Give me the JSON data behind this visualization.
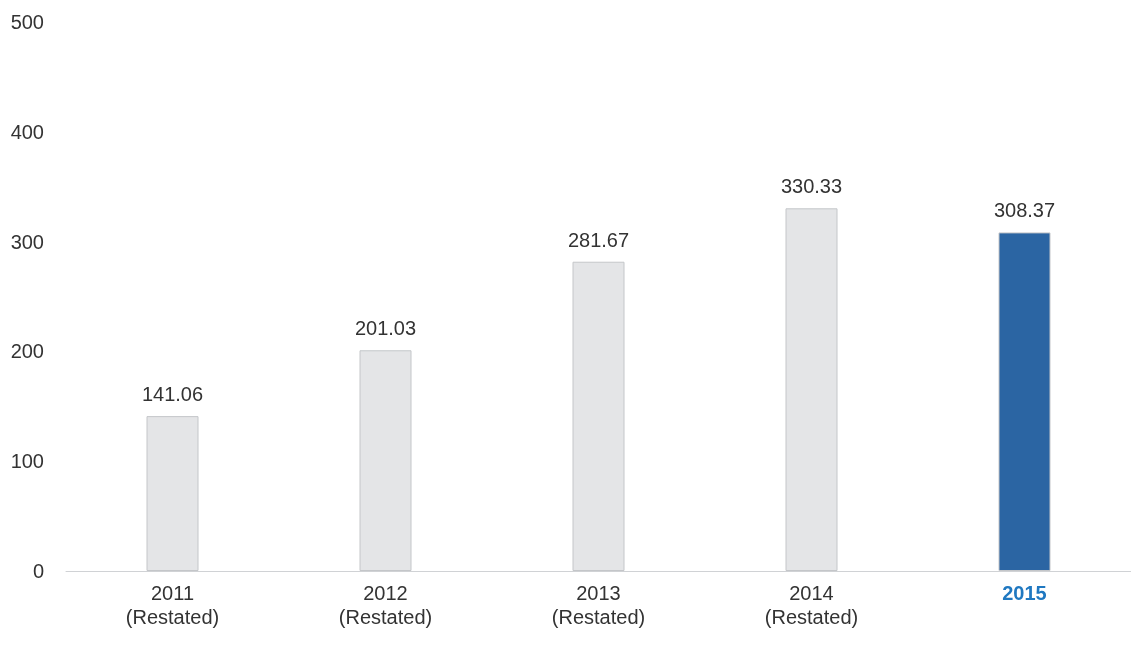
{
  "chart_data": {
    "type": "bar",
    "categories": [
      "2011\n(Restated)",
      "2012\n(Restated)",
      "2013\n(Restated)",
      "2014\n(Restated)",
      "2015"
    ],
    "values": [
      141.06,
      201.03,
      281.67,
      330.33,
      308.37
    ],
    "colors": [
      "#e4e5e7",
      "#e4e5e7",
      "#e4e5e7",
      "#e4e5e7",
      "#2b65a3"
    ],
    "ylim": [
      0,
      500
    ],
    "yticks": [
      0,
      100,
      200,
      300,
      400,
      500
    ],
    "data_labels": true,
    "grid": false
  }
}
